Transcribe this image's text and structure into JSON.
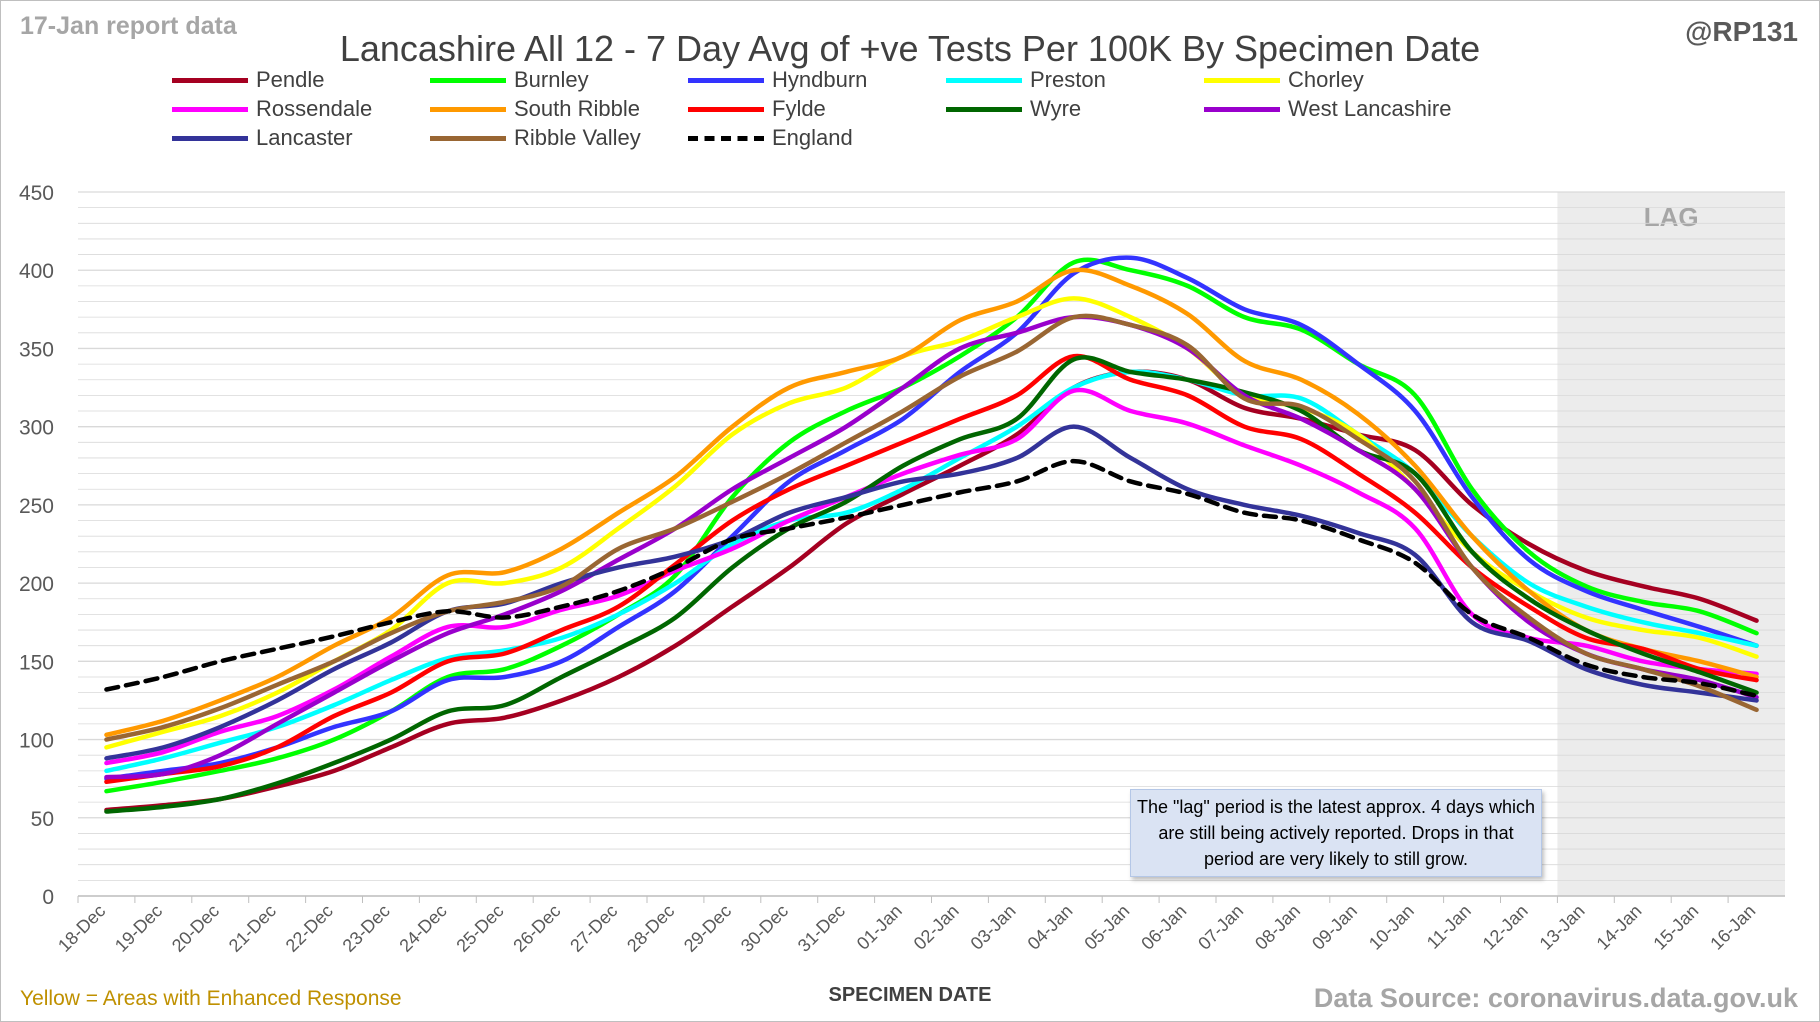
{
  "header": {
    "report_date": "17-Jan report data",
    "handle": "@RP131",
    "title": "Lancashire All 12 - 7 Day Avg of +ve Tests Per 100K By Specimen Date"
  },
  "footer": {
    "enhanced_note": "Yellow = Areas with Enhanced Response",
    "source": "Data Source: coronavirus.data.gov.uk"
  },
  "note_box": "The \"lag\" period is the latest approx. 4 days which are still being actively reported. Drops in that period are very likely to still grow.",
  "colors": {
    "grid": "#d9d9d9",
    "axis": "#bfbfbf",
    "lag_band": "#ececec",
    "lag_text": "#a6a6a6"
  },
  "chart_data": {
    "type": "line",
    "title": "Lancashire All 12 - 7 Day Avg of +ve Tests Per 100K By Specimen Date",
    "xlabel": "SPECIMEN DATE",
    "ylabel": "",
    "ylim": [
      0,
      450
    ],
    "yticks": [
      0,
      50,
      100,
      150,
      200,
      250,
      300,
      350,
      400,
      450
    ],
    "grid": true,
    "legend_position": "top",
    "lag_label": "LAG",
    "lag_from": "13-Jan",
    "lag_to": "16-Jan",
    "categories": [
      "18-Dec",
      "19-Dec",
      "20-Dec",
      "21-Dec",
      "22-Dec",
      "23-Dec",
      "24-Dec",
      "25-Dec",
      "26-Dec",
      "27-Dec",
      "28-Dec",
      "29-Dec",
      "30-Dec",
      "31-Dec",
      "01-Jan",
      "02-Jan",
      "03-Jan",
      "04-Jan",
      "05-Jan",
      "06-Jan",
      "07-Jan",
      "08-Jan",
      "09-Jan",
      "10-Jan",
      "11-Jan",
      "12-Jan",
      "13-Jan",
      "14-Jan",
      "15-Jan",
      "16-Jan"
    ],
    "series": [
      {
        "name": "Pendle",
        "color": "#a50021",
        "dash": false,
        "values": [
          55,
          58,
          62,
          70,
          80,
          95,
          110,
          114,
          125,
          140,
          160,
          185,
          210,
          238,
          257,
          275,
          295,
          325,
          335,
          330,
          312,
          305,
          295,
          285,
          250,
          225,
          208,
          198,
          190,
          176
        ]
      },
      {
        "name": "Burnley",
        "color": "#00ff00",
        "dash": false,
        "values": [
          67,
          73,
          80,
          88,
          100,
          118,
          140,
          145,
          160,
          180,
          205,
          255,
          290,
          310,
          325,
          345,
          370,
          405,
          400,
          390,
          370,
          362,
          340,
          320,
          260,
          220,
          198,
          188,
          182,
          168
        ]
      },
      {
        "name": "Hyndburn",
        "color": "#3333ff",
        "dash": false,
        "values": [
          75,
          80,
          85,
          95,
          108,
          118,
          138,
          140,
          150,
          172,
          195,
          230,
          265,
          285,
          305,
          335,
          360,
          398,
          408,
          395,
          375,
          365,
          340,
          310,
          255,
          215,
          195,
          183,
          172,
          160
        ]
      },
      {
        "name": "Preston",
        "color": "#00ffff",
        "dash": false,
        "values": [
          80,
          88,
          98,
          108,
          122,
          138,
          152,
          157,
          165,
          180,
          200,
          225,
          240,
          245,
          260,
          280,
          300,
          325,
          335,
          330,
          320,
          318,
          295,
          270,
          230,
          200,
          185,
          175,
          168,
          160
        ]
      },
      {
        "name": "Chorley",
        "color": "#ffff00",
        "dash": false,
        "values": [
          95,
          105,
          115,
          130,
          150,
          170,
          200,
          200,
          210,
          235,
          262,
          295,
          315,
          325,
          345,
          355,
          370,
          382,
          370,
          350,
          320,
          312,
          295,
          260,
          220,
          195,
          178,
          170,
          165,
          153
        ]
      },
      {
        "name": "Rossendale",
        "color": "#ff00ff",
        "dash": false,
        "values": [
          85,
          92,
          105,
          115,
          132,
          153,
          172,
          172,
          183,
          192,
          208,
          222,
          240,
          255,
          270,
          282,
          292,
          323,
          310,
          302,
          288,
          275,
          258,
          235,
          180,
          165,
          160,
          150,
          145,
          142
        ]
      },
      {
        "name": "South Ribble",
        "color": "#ff9900",
        "dash": false,
        "values": [
          103,
          112,
          125,
          140,
          160,
          178,
          205,
          207,
          222,
          245,
          268,
          300,
          325,
          335,
          345,
          368,
          380,
          400,
          390,
          372,
          342,
          330,
          308,
          275,
          230,
          195,
          170,
          158,
          150,
          140
        ]
      },
      {
        "name": "Fylde",
        "color": "#ff0000",
        "dash": false,
        "values": [
          73,
          78,
          83,
          95,
          115,
          130,
          150,
          155,
          170,
          185,
          212,
          240,
          260,
          275,
          290,
          305,
          320,
          345,
          330,
          320,
          300,
          292,
          270,
          245,
          210,
          185,
          165,
          158,
          145,
          138
        ]
      },
      {
        "name": "Wyre",
        "color": "#006600",
        "dash": false,
        "values": [
          54,
          57,
          62,
          72,
          85,
          100,
          118,
          122,
          140,
          158,
          178,
          210,
          235,
          252,
          275,
          292,
          305,
          343,
          335,
          330,
          322,
          310,
          285,
          270,
          220,
          190,
          170,
          155,
          143,
          130
        ]
      },
      {
        "name": "West Lancashire",
        "color": "#9900cc",
        "dash": false,
        "values": [
          76,
          78,
          90,
          110,
          130,
          150,
          168,
          180,
          195,
          215,
          235,
          260,
          280,
          300,
          325,
          350,
          360,
          370,
          365,
          350,
          320,
          305,
          285,
          260,
          210,
          175,
          155,
          145,
          138,
          127
        ]
      },
      {
        "name": "Lancaster",
        "color": "#333399",
        "dash": false,
        "values": [
          88,
          95,
          108,
          125,
          145,
          162,
          182,
          187,
          200,
          210,
          217,
          228,
          245,
          255,
          265,
          270,
          280,
          300,
          280,
          260,
          250,
          243,
          232,
          218,
          175,
          163,
          145,
          135,
          130,
          125
        ]
      },
      {
        "name": "Ribble Valley",
        "color": "#996633",
        "dash": false,
        "values": [
          100,
          108,
          120,
          135,
          150,
          168,
          182,
          188,
          198,
          222,
          235,
          252,
          270,
          290,
          310,
          332,
          348,
          370,
          365,
          352,
          318,
          313,
          292,
          265,
          210,
          178,
          155,
          145,
          134,
          119
        ]
      },
      {
        "name": "England",
        "color": "#000000",
        "dash": true,
        "values": [
          132,
          140,
          150,
          158,
          166,
          175,
          182,
          178,
          185,
          195,
          210,
          228,
          235,
          242,
          250,
          258,
          265,
          278,
          265,
          257,
          245,
          240,
          228,
          213,
          180,
          165,
          148,
          140,
          136,
          128
        ]
      }
    ]
  }
}
